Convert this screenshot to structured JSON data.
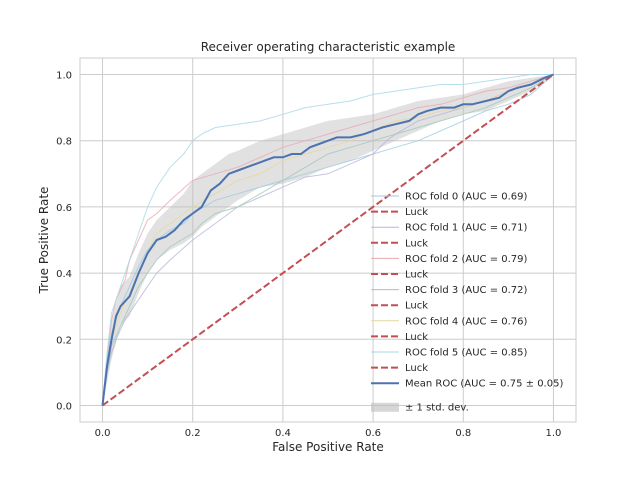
{
  "chart_data": {
    "type": "line",
    "title": "Receiver operating characteristic example",
    "xlabel": "False Positive Rate",
    "ylabel": "True Positive Rate",
    "xlim": [
      -0.05,
      1.05
    ],
    "ylim": [
      -0.05,
      1.05
    ],
    "xticks": [
      "0.0",
      "0.2",
      "0.4",
      "0.6",
      "0.8",
      "1.0"
    ],
    "yticks": [
      "0.0",
      "0.2",
      "0.4",
      "0.6",
      "0.8",
      "1.0"
    ],
    "grid": true,
    "legend_position": "lower-right",
    "folds": [
      {
        "name": "ROC fold 0 (AUC = 0.69)",
        "color": "#9ecae1",
        "points": [
          [
            0,
            0
          ],
          [
            0.01,
            0.14
          ],
          [
            0.02,
            0.22
          ],
          [
            0.04,
            0.3
          ],
          [
            0.06,
            0.36
          ],
          [
            0.08,
            0.42
          ],
          [
            0.1,
            0.47
          ],
          [
            0.12,
            0.5
          ],
          [
            0.15,
            0.53
          ],
          [
            0.18,
            0.55
          ],
          [
            0.2,
            0.58
          ],
          [
            0.25,
            0.62
          ],
          [
            0.3,
            0.64
          ],
          [
            0.35,
            0.66
          ],
          [
            0.4,
            0.68
          ],
          [
            0.45,
            0.7
          ],
          [
            0.5,
            0.72
          ],
          [
            0.55,
            0.74
          ],
          [
            0.6,
            0.76
          ],
          [
            0.65,
            0.78
          ],
          [
            0.7,
            0.8
          ],
          [
            0.75,
            0.83
          ],
          [
            0.8,
            0.86
          ],
          [
            0.85,
            0.89
          ],
          [
            0.9,
            0.91
          ],
          [
            0.95,
            0.94
          ],
          [
            1,
            1
          ]
        ]
      },
      {
        "name": "ROC fold 1 (AUC = 0.71)",
        "color": "#b7b7d9",
        "points": [
          [
            0,
            0
          ],
          [
            0.01,
            0.1
          ],
          [
            0.02,
            0.16
          ],
          [
            0.03,
            0.2
          ],
          [
            0.05,
            0.26
          ],
          [
            0.07,
            0.3
          ],
          [
            0.1,
            0.36
          ],
          [
            0.12,
            0.4
          ],
          [
            0.15,
            0.44
          ],
          [
            0.2,
            0.5
          ],
          [
            0.25,
            0.55
          ],
          [
            0.3,
            0.6
          ],
          [
            0.35,
            0.63
          ],
          [
            0.4,
            0.66
          ],
          [
            0.45,
            0.69
          ],
          [
            0.5,
            0.7
          ],
          [
            0.55,
            0.73
          ],
          [
            0.6,
            0.76
          ],
          [
            0.63,
            0.8
          ],
          [
            0.65,
            0.82
          ],
          [
            0.7,
            0.86
          ],
          [
            0.75,
            0.88
          ],
          [
            0.8,
            0.9
          ],
          [
            0.85,
            0.92
          ],
          [
            0.9,
            0.95
          ],
          [
            0.95,
            0.97
          ],
          [
            1,
            1
          ]
        ]
      },
      {
        "name": "ROC fold 2 (AUC = 0.79)",
        "color": "#e7a9b3",
        "points": [
          [
            0,
            0
          ],
          [
            0.01,
            0.14
          ],
          [
            0.02,
            0.26
          ],
          [
            0.03,
            0.32
          ],
          [
            0.05,
            0.38
          ],
          [
            0.06,
            0.44
          ],
          [
            0.08,
            0.5
          ],
          [
            0.1,
            0.56
          ],
          [
            0.12,
            0.58
          ],
          [
            0.15,
            0.62
          ],
          [
            0.2,
            0.68
          ],
          [
            0.25,
            0.7
          ],
          [
            0.3,
            0.72
          ],
          [
            0.35,
            0.75
          ],
          [
            0.4,
            0.78
          ],
          [
            0.45,
            0.8
          ],
          [
            0.5,
            0.82
          ],
          [
            0.55,
            0.84
          ],
          [
            0.6,
            0.86
          ],
          [
            0.65,
            0.88
          ],
          [
            0.7,
            0.9
          ],
          [
            0.75,
            0.91
          ],
          [
            0.8,
            0.93
          ],
          [
            0.85,
            0.95
          ],
          [
            0.9,
            0.96
          ],
          [
            0.95,
            0.98
          ],
          [
            1,
            1
          ]
        ]
      },
      {
        "name": "ROC fold 3 (AUC = 0.72)",
        "color": "#a1c9b6",
        "points": [
          [
            0,
            0
          ],
          [
            0.01,
            0.1
          ],
          [
            0.02,
            0.18
          ],
          [
            0.04,
            0.24
          ],
          [
            0.06,
            0.3
          ],
          [
            0.08,
            0.36
          ],
          [
            0.1,
            0.4
          ],
          [
            0.12,
            0.44
          ],
          [
            0.15,
            0.48
          ],
          [
            0.2,
            0.52
          ],
          [
            0.22,
            0.55
          ],
          [
            0.25,
            0.58
          ],
          [
            0.3,
            0.6
          ],
          [
            0.35,
            0.64
          ],
          [
            0.4,
            0.68
          ],
          [
            0.45,
            0.72
          ],
          [
            0.5,
            0.76
          ],
          [
            0.55,
            0.78
          ],
          [
            0.6,
            0.8
          ],
          [
            0.65,
            0.82
          ],
          [
            0.7,
            0.84
          ],
          [
            0.75,
            0.86
          ],
          [
            0.8,
            0.88
          ],
          [
            0.85,
            0.9
          ],
          [
            0.9,
            0.93
          ],
          [
            0.95,
            0.96
          ],
          [
            1,
            1
          ]
        ]
      },
      {
        "name": "ROC fold 4 (AUC = 0.76)",
        "color": "#e3d99b",
        "points": [
          [
            0,
            0
          ],
          [
            0.01,
            0.12
          ],
          [
            0.02,
            0.2
          ],
          [
            0.04,
            0.28
          ],
          [
            0.06,
            0.34
          ],
          [
            0.08,
            0.4
          ],
          [
            0.1,
            0.46
          ],
          [
            0.12,
            0.52
          ],
          [
            0.15,
            0.55
          ],
          [
            0.2,
            0.6
          ],
          [
            0.25,
            0.64
          ],
          [
            0.3,
            0.68
          ],
          [
            0.35,
            0.7
          ],
          [
            0.4,
            0.74
          ],
          [
            0.45,
            0.76
          ],
          [
            0.5,
            0.78
          ],
          [
            0.55,
            0.8
          ],
          [
            0.6,
            0.83
          ],
          [
            0.65,
            0.86
          ],
          [
            0.7,
            0.87
          ],
          [
            0.75,
            0.89
          ],
          [
            0.8,
            0.9
          ],
          [
            0.85,
            0.92
          ],
          [
            0.9,
            0.95
          ],
          [
            0.95,
            0.97
          ],
          [
            1,
            1
          ]
        ]
      },
      {
        "name": "ROC fold 5 (AUC = 0.85)",
        "color": "#a6d8e6",
        "points": [
          [
            0,
            0
          ],
          [
            0.01,
            0.16
          ],
          [
            0.02,
            0.28
          ],
          [
            0.04,
            0.36
          ],
          [
            0.06,
            0.44
          ],
          [
            0.08,
            0.52
          ],
          [
            0.1,
            0.6
          ],
          [
            0.12,
            0.66
          ],
          [
            0.15,
            0.72
          ],
          [
            0.18,
            0.76
          ],
          [
            0.2,
            0.8
          ],
          [
            0.22,
            0.82
          ],
          [
            0.25,
            0.84
          ],
          [
            0.3,
            0.85
          ],
          [
            0.35,
            0.86
          ],
          [
            0.4,
            0.88
          ],
          [
            0.45,
            0.9
          ],
          [
            0.5,
            0.91
          ],
          [
            0.55,
            0.92
          ],
          [
            0.6,
            0.94
          ],
          [
            0.65,
            0.95
          ],
          [
            0.7,
            0.96
          ],
          [
            0.75,
            0.97
          ],
          [
            0.8,
            0.97
          ],
          [
            0.85,
            0.98
          ],
          [
            0.9,
            0.99
          ],
          [
            0.95,
            1
          ],
          [
            1,
            1
          ]
        ]
      }
    ],
    "luck": {
      "name": "Luck",
      "color": "#c44e52",
      "points": [
        [
          0,
          0
        ],
        [
          1,
          1
        ]
      ]
    },
    "mean_roc": {
      "name": "Mean ROC (AUC = 0.75 ± 0.05)",
      "color": "#4c72b0",
      "points": [
        [
          0,
          0
        ],
        [
          0.01,
          0.12
        ],
        [
          0.02,
          0.2
        ],
        [
          0.03,
          0.27
        ],
        [
          0.04,
          0.3
        ],
        [
          0.06,
          0.33
        ],
        [
          0.08,
          0.4
        ],
        [
          0.1,
          0.46
        ],
        [
          0.12,
          0.5
        ],
        [
          0.14,
          0.51
        ],
        [
          0.16,
          0.53
        ],
        [
          0.18,
          0.56
        ],
        [
          0.2,
          0.58
        ],
        [
          0.22,
          0.6
        ],
        [
          0.24,
          0.65
        ],
        [
          0.26,
          0.67
        ],
        [
          0.28,
          0.7
        ],
        [
          0.3,
          0.71
        ],
        [
          0.32,
          0.72
        ],
        [
          0.34,
          0.73
        ],
        [
          0.36,
          0.74
        ],
        [
          0.38,
          0.75
        ],
        [
          0.4,
          0.75
        ],
        [
          0.42,
          0.76
        ],
        [
          0.44,
          0.76
        ],
        [
          0.46,
          0.78
        ],
        [
          0.48,
          0.79
        ],
        [
          0.5,
          0.8
        ],
        [
          0.52,
          0.81
        ],
        [
          0.55,
          0.81
        ],
        [
          0.58,
          0.82
        ],
        [
          0.6,
          0.83
        ],
        [
          0.62,
          0.84
        ],
        [
          0.65,
          0.85
        ],
        [
          0.68,
          0.86
        ],
        [
          0.7,
          0.88
        ],
        [
          0.72,
          0.89
        ],
        [
          0.75,
          0.9
        ],
        [
          0.78,
          0.9
        ],
        [
          0.8,
          0.91
        ],
        [
          0.82,
          0.91
        ],
        [
          0.85,
          0.92
        ],
        [
          0.88,
          0.93
        ],
        [
          0.9,
          0.95
        ],
        [
          0.92,
          0.96
        ],
        [
          0.95,
          0.97
        ],
        [
          0.98,
          0.99
        ],
        [
          1,
          1
        ]
      ]
    },
    "std_band": {
      "name": "± 1 std. dev.",
      "color": "#bdbdbd",
      "upper": [
        [
          0,
          0
        ],
        [
          0.02,
          0.26
        ],
        [
          0.04,
          0.36
        ],
        [
          0.06,
          0.39
        ],
        [
          0.08,
          0.46
        ],
        [
          0.1,
          0.52
        ],
        [
          0.12,
          0.56
        ],
        [
          0.15,
          0.6
        ],
        [
          0.18,
          0.64
        ],
        [
          0.2,
          0.68
        ],
        [
          0.22,
          0.7
        ],
        [
          0.25,
          0.73
        ],
        [
          0.28,
          0.76
        ],
        [
          0.3,
          0.77
        ],
        [
          0.35,
          0.8
        ],
        [
          0.4,
          0.82
        ],
        [
          0.45,
          0.84
        ],
        [
          0.5,
          0.86
        ],
        [
          0.55,
          0.87
        ],
        [
          0.6,
          0.88
        ],
        [
          0.65,
          0.9
        ],
        [
          0.7,
          0.92
        ],
        [
          0.75,
          0.93
        ],
        [
          0.8,
          0.94
        ],
        [
          0.85,
          0.96
        ],
        [
          0.9,
          0.98
        ],
        [
          0.95,
          0.99
        ],
        [
          1,
          1
        ]
      ],
      "lower": [
        [
          0,
          0
        ],
        [
          0.02,
          0.14
        ],
        [
          0.04,
          0.24
        ],
        [
          0.06,
          0.27
        ],
        [
          0.08,
          0.34
        ],
        [
          0.1,
          0.4
        ],
        [
          0.12,
          0.44
        ],
        [
          0.15,
          0.47
        ],
        [
          0.18,
          0.49
        ],
        [
          0.2,
          0.51
        ],
        [
          0.22,
          0.54
        ],
        [
          0.25,
          0.57
        ],
        [
          0.28,
          0.6
        ],
        [
          0.3,
          0.62
        ],
        [
          0.35,
          0.66
        ],
        [
          0.4,
          0.67
        ],
        [
          0.45,
          0.69
        ],
        [
          0.5,
          0.72
        ],
        [
          0.55,
          0.74
        ],
        [
          0.6,
          0.77
        ],
        [
          0.65,
          0.8
        ],
        [
          0.7,
          0.83
        ],
        [
          0.75,
          0.86
        ],
        [
          0.8,
          0.88
        ],
        [
          0.85,
          0.89
        ],
        [
          0.9,
          0.92
        ],
        [
          0.95,
          0.95
        ],
        [
          1,
          1
        ]
      ]
    }
  }
}
